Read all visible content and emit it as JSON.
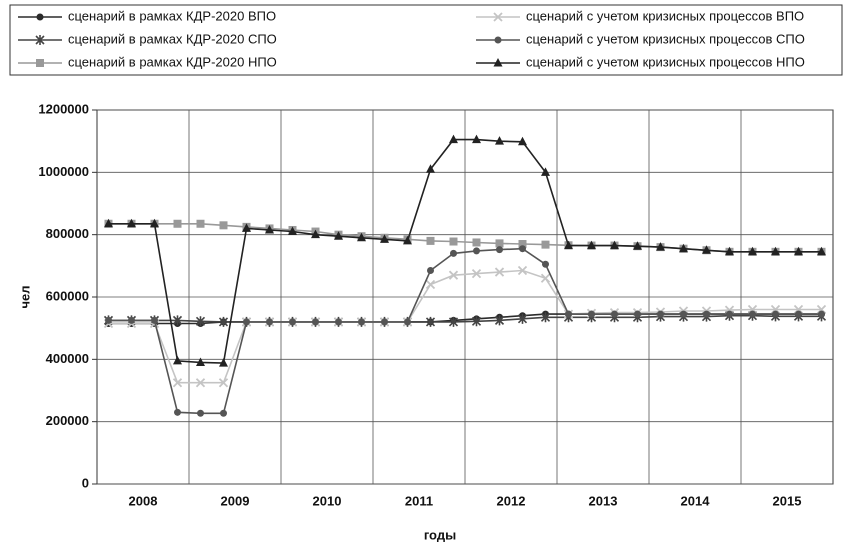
{
  "chart_data": {
    "type": "line",
    "categories": [
      "2008",
      null,
      null,
      null,
      "2009",
      null,
      null,
      null,
      "2010",
      null,
      null,
      null,
      "2011",
      null,
      null,
      null,
      "2012",
      null,
      null,
      null,
      "2013",
      null,
      null,
      null,
      "2014",
      null,
      null,
      null,
      "2015",
      null,
      null,
      null
    ],
    "series": [
      {
        "name": "сценарий в рамках КДР-2020 ВПО",
        "color": "#2b2b2b",
        "marker": "circle",
        "values": [
          515000,
          515000,
          515000,
          515000,
          515000,
          520000,
          520000,
          520000,
          520000,
          520000,
          520000,
          520000,
          520000,
          520000,
          520000,
          525000,
          530000,
          535000,
          540000,
          545000,
          545000,
          545000,
          545000,
          545000,
          545000,
          545000,
          545000,
          545000,
          545000,
          545000,
          545000,
          545000
        ]
      },
      {
        "name": "сценарий в рамках КДР-2020 СПО",
        "color": "#444444",
        "marker": "star",
        "values": [
          525000,
          525000,
          525000,
          525000,
          522000,
          520000,
          520000,
          520000,
          520000,
          520000,
          520000,
          520000,
          520000,
          520000,
          520000,
          520000,
          522000,
          525000,
          530000,
          535000,
          535000,
          535000,
          535000,
          535000,
          537000,
          537000,
          537000,
          540000,
          540000,
          538000,
          538000,
          538000
        ]
      },
      {
        "name": "сценарий в рамках КДР-2020 НПО",
        "color": "#999999",
        "marker": "square",
        "values": [
          835000,
          835000,
          835000,
          835000,
          835000,
          830000,
          825000,
          820000,
          815000,
          810000,
          800000,
          795000,
          790000,
          785000,
          780000,
          778000,
          775000,
          772000,
          770000,
          768000,
          766000,
          765000,
          765000,
          763000,
          760000,
          755000,
          750000,
          745000,
          745000,
          745000,
          745000,
          745000
        ]
      },
      {
        "name": "сценарий с учетом кризисных процессов ВПО",
        "color": "#c4c4c4",
        "marker": "x",
        "values": [
          515000,
          515000,
          515000,
          325000,
          325000,
          325000,
          520000,
          520000,
          520000,
          520000,
          520000,
          520000,
          520000,
          520000,
          640000,
          670000,
          675000,
          680000,
          685000,
          660000,
          545000,
          548000,
          550000,
          550000,
          552000,
          555000,
          555000,
          558000,
          560000,
          560000,
          560000,
          560000
        ]
      },
      {
        "name": "сценарий с учетом кризисных процессов СПО",
        "color": "#555555",
        "marker": "circle",
        "values": [
          525000,
          525000,
          525000,
          230000,
          227000,
          227000,
          520000,
          520000,
          520000,
          520000,
          520000,
          520000,
          520000,
          520000,
          685000,
          740000,
          748000,
          752000,
          755000,
          705000,
          545000,
          545000,
          545000,
          545000,
          545000,
          545000,
          545000,
          545000,
          545000,
          545000,
          545000,
          545000
        ]
      },
      {
        "name": "сценарий с учетом кризисных процессов НПО",
        "color": "#222222",
        "marker": "triangle",
        "values": [
          835000,
          835000,
          835000,
          395000,
          390000,
          388000,
          820000,
          815000,
          810000,
          800000,
          795000,
          790000,
          785000,
          780000,
          1010000,
          1105000,
          1105000,
          1100000,
          1098000,
          1000000,
          765000,
          765000,
          765000,
          763000,
          760000,
          755000,
          750000,
          745000,
          745000,
          745000,
          745000,
          745000
        ]
      }
    ],
    "xlabel": "годы",
    "ylabel": "чел",
    "ylim": [
      0,
      1200000
    ],
    "yticks": [
      0,
      200000,
      400000,
      600000,
      800000,
      1000000,
      1200000
    ],
    "grid": true
  }
}
